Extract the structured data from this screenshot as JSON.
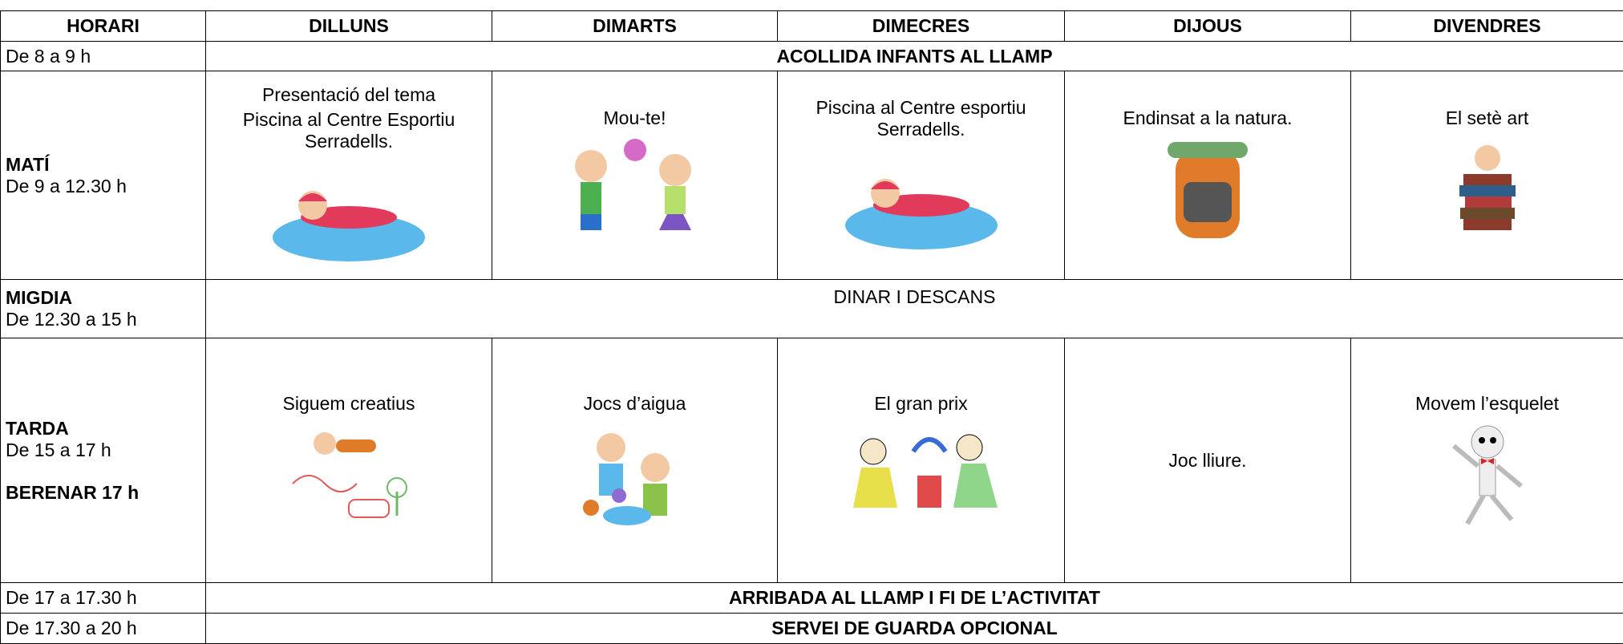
{
  "table": {
    "header": [
      "HORARI",
      "DILLUNS",
      "DIMARTS",
      "DIMECRES",
      "DIJOUS",
      "DIVENDRES"
    ],
    "rows": [
      {
        "time": [
          "De 8 a 9 h"
        ],
        "all": "ACOLLIDA INFANTS AL LLAMP"
      },
      {
        "time": [
          "MATÍ",
          "De 9 a 12.30 h"
        ],
        "days": [
          [
            "Presentació del tema",
            "Piscina al Centre Esportiu Serradells."
          ],
          [
            "Mou-te!"
          ],
          [
            "Piscina al Centre esportiu Serradells."
          ],
          [
            "Endinsat a la natura."
          ],
          [
            "El setè art"
          ]
        ]
      },
      {
        "time": [
          "MIGDIA",
          "De 12.30 a 15 h"
        ],
        "all": "DINAR I DESCANS"
      },
      {
        "time": [
          "TARDA",
          "De 15 a 17 h",
          "BERENAR 17 h"
        ],
        "days": [
          [
            "Siguem creatius"
          ],
          [
            "Jocs d’aigua"
          ],
          [
            "El gran prix"
          ],
          [
            "Joc lliure."
          ],
          [
            "Movem l’esquelet"
          ]
        ]
      },
      {
        "time": [
          "De 17 a 17.30 h"
        ],
        "all": "ARRIBADA AL LLAMP I FI DE L’ACTIVITAT"
      },
      {
        "time": [
          "De 17.30 a 20 h"
        ],
        "all": "SERVEI DE GUARDA OPCIONAL"
      }
    ]
  }
}
